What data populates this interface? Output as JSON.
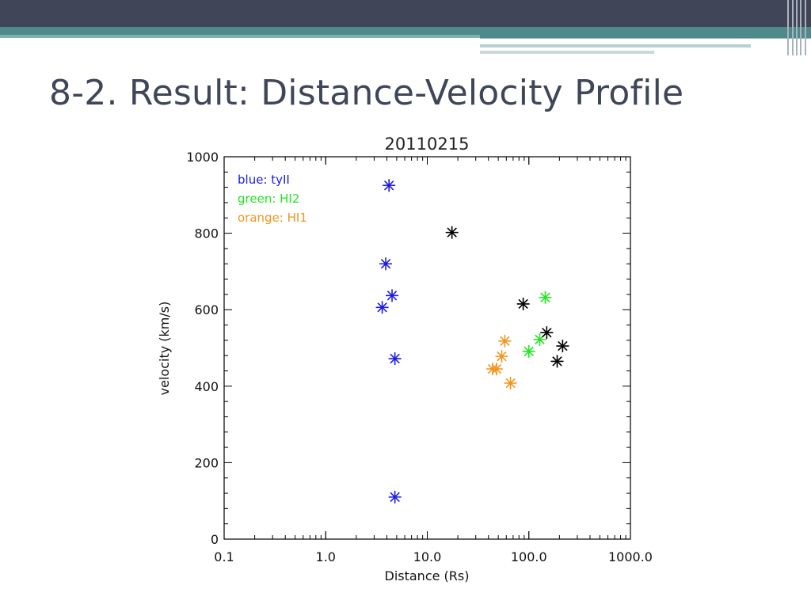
{
  "slide": {
    "title": "8-2. Result: Distance-Velocity Profile"
  },
  "colors": {
    "blue": "#1c1ce6",
    "green": "#22e622",
    "orange": "#f0961e",
    "black": "#000000"
  },
  "chart_data": {
    "type": "scatter",
    "title": "20110215",
    "xlabel": "Distance (Rs)",
    "ylabel": "velocity (km/s)",
    "xscale": "log",
    "xlim": [
      0.1,
      1000.0
    ],
    "ylim": [
      0,
      1000
    ],
    "x_ticks": [
      {
        "value": 0.1,
        "label": "0.1"
      },
      {
        "value": 1.0,
        "label": "1.0"
      },
      {
        "value": 10.0,
        "label": "10.0"
      },
      {
        "value": 100.0,
        "label": "100.0"
      },
      {
        "value": 1000.0,
        "label": "1000.0"
      }
    ],
    "y_ticks": [
      {
        "value": 0,
        "label": "0"
      },
      {
        "value": 200,
        "label": "200"
      },
      {
        "value": 400,
        "label": "400"
      },
      {
        "value": 600,
        "label": "600"
      },
      {
        "value": 800,
        "label": "800"
      },
      {
        "value": 1000,
        "label": "1000"
      }
    ],
    "marker": "asterisk",
    "grid": false,
    "legend_position": "top-left",
    "legend": [
      {
        "text": "blue:  tyII",
        "color": "#1c1ce6"
      },
      {
        "text": "green:  HI2",
        "color": "#22e622"
      },
      {
        "text": "orange:  HI1",
        "color": "#f0961e"
      }
    ],
    "series": [
      {
        "color": "#1c1ce6",
        "points": [
          {
            "x": 4.2,
            "y": 925
          },
          {
            "x": 3.9,
            "y": 720
          },
          {
            "x": 4.5,
            "y": 637
          },
          {
            "x": 3.6,
            "y": 606
          },
          {
            "x": 4.8,
            "y": 472
          },
          {
            "x": 4.8,
            "y": 110
          }
        ]
      },
      {
        "color": "#22e622",
        "points": [
          {
            "x": 145,
            "y": 632
          },
          {
            "x": 128,
            "y": 522
          },
          {
            "x": 100,
            "y": 491
          }
        ]
      },
      {
        "color": "#f0961e",
        "points": [
          {
            "x": 58,
            "y": 518
          },
          {
            "x": 54,
            "y": 478
          },
          {
            "x": 44,
            "y": 445
          },
          {
            "x": 48,
            "y": 445
          },
          {
            "x": 66,
            "y": 408
          }
        ]
      },
      {
        "color": "#000000",
        "points": [
          {
            "x": 17.5,
            "y": 802
          },
          {
            "x": 88,
            "y": 615
          },
          {
            "x": 150,
            "y": 540
          },
          {
            "x": 215,
            "y": 505
          },
          {
            "x": 190,
            "y": 465
          }
        ]
      }
    ]
  }
}
